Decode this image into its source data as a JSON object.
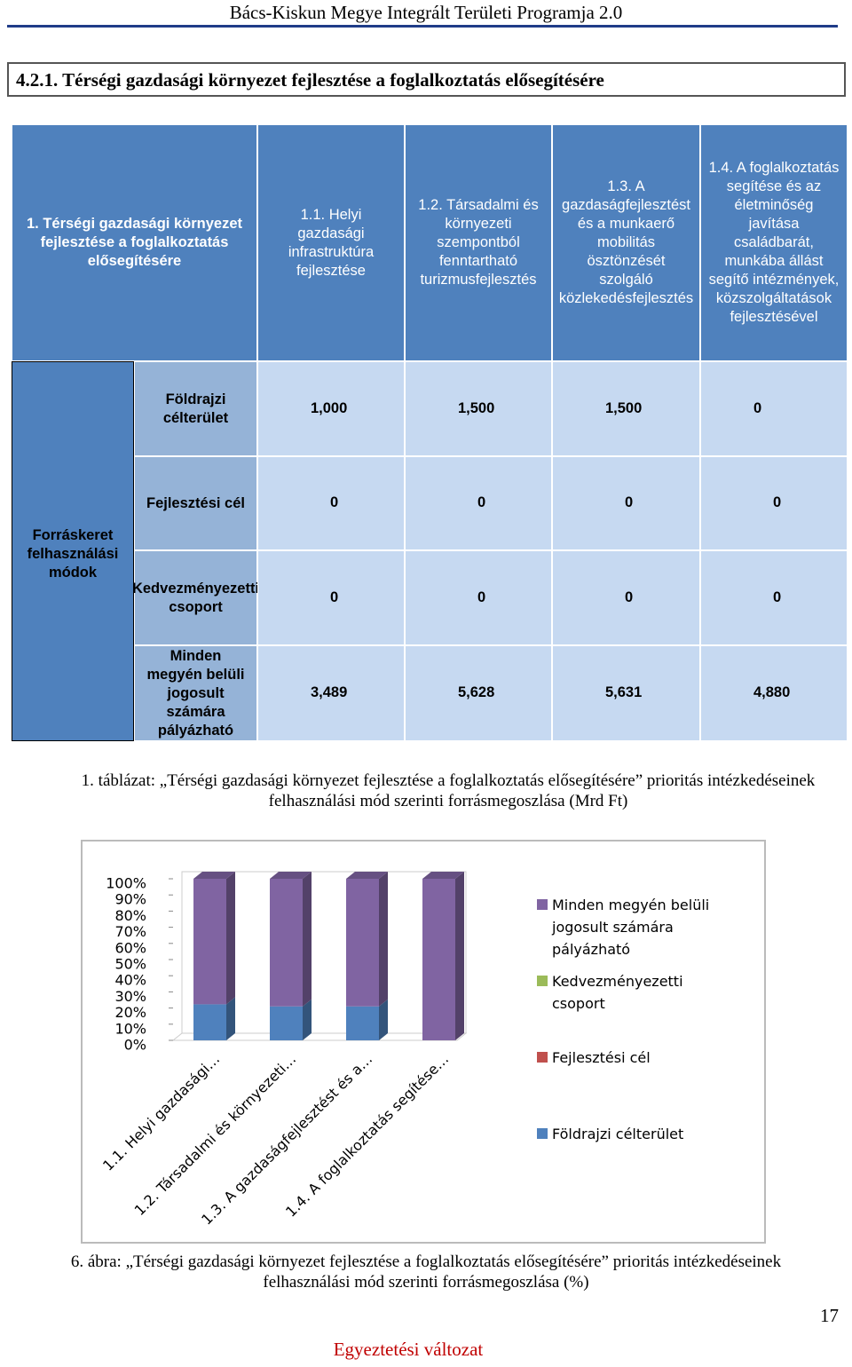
{
  "header": {
    "title": "Bács-Kiskun Megye Integrált Területi Programja 2.0"
  },
  "section_title": "4.2.1. Térségi gazdasági környezet fejlesztése a foglalkoztatás elősegítésére",
  "table": {
    "header": [
      "1. Térségi gazdasági környezet fejlesztése a foglalkoztatás elősegítésére",
      "1.1. Helyi gazdasági infrastruktúra fejlesztése",
      "1.2. Társadalmi és környezeti szempontból fenntartható turizmusfejlesztés",
      "1.3. A gazdaságfejlesztést és a munkaerő mobilitás ösztönzését szolgáló közlekedésfejlesztés",
      "1.4. A foglalkoztatás segítése és az életminőség javítása családbarát, munkába állást segítő intézmények, közszolgáltatások fejlesztésével"
    ],
    "side_label": "Forráskeret felhasználási módok",
    "rows": [
      [
        "Földrajzi célterület",
        "1,000",
        "1,500",
        "1,500",
        "0"
      ],
      [
        "Fejlesztési cél",
        "0",
        "0",
        "0",
        "0"
      ],
      [
        "Kedvezményezetti csoport",
        "0",
        "0",
        "0",
        "0"
      ],
      [
        "Minden megyén belüli jogosult számára pályázható",
        "3,489",
        "5,628",
        "5,631",
        "4,880"
      ]
    ]
  },
  "table_caption": "1. táblázat: „Térségi gazdasági környezet fejlesztése a foglalkoztatás elősegítésére” prioritás intézkedéseinek felhasználási mód szerinti forrásmegoszlása (Mrd Ft)",
  "chart_data": {
    "type": "bar",
    "stacked": true,
    "categories": [
      "1.1. Helyi gazdasági…",
      "1.2. Társadalmi és környezeti…",
      "1.3. A gazdaságfejlesztést és a…",
      "1.4. A foglalkoztatás segítése…"
    ],
    "series": [
      {
        "name": "Földrajzi célterület",
        "color": "#4f81bd",
        "values": [
          22.3,
          21.0,
          21.0,
          0
        ]
      },
      {
        "name": "Fejlesztési cél",
        "color": "#c0504d",
        "values": [
          0,
          0,
          0,
          0
        ]
      },
      {
        "name": "Kedvezményezetti csoport",
        "color": "#9bbb59",
        "values": [
          0,
          0,
          0,
          0
        ]
      },
      {
        "name": "Minden megyén belüli jogosult számára pályázható",
        "color": "#8064a2",
        "values": [
          77.7,
          79.0,
          79.0,
          100
        ]
      }
    ],
    "ylim": [
      0,
      100
    ],
    "yticks": [
      {
        "value": 0,
        "label": "0%"
      },
      {
        "value": 10,
        "label": "10%"
      },
      {
        "value": 20,
        "label": "20%"
      },
      {
        "value": 30,
        "label": "30%"
      },
      {
        "value": 40,
        "label": "40%"
      },
      {
        "value": 50,
        "label": "50%"
      },
      {
        "value": 60,
        "label": "60%"
      },
      {
        "value": 70,
        "label": "70%"
      },
      {
        "value": 80,
        "label": "80%"
      },
      {
        "value": 90,
        "label": "90%"
      },
      {
        "value": 100,
        "label": "100%"
      }
    ],
    "legend": "right"
  },
  "figure_caption": "6. ábra: „Térségi gazdasági környezet fejlesztése a foglalkoztatás elősegítésére” prioritás intézkedéseinek felhasználási mód szerinti forrásmegoszlása (%)",
  "page_number": "17",
  "footer": "Egyeztetési változat"
}
